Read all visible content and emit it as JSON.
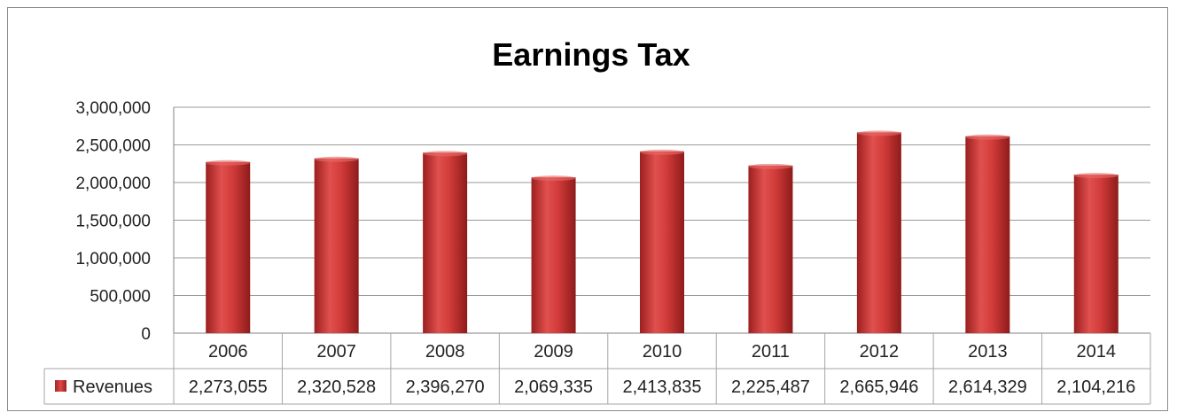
{
  "chart_data": {
    "type": "bar",
    "title": "Earnings Tax",
    "xlabel": "",
    "ylabel": "",
    "categories": [
      "2006",
      "2007",
      "2008",
      "2009",
      "2010",
      "2011",
      "2012",
      "2013",
      "2014"
    ],
    "series": [
      {
        "name": "Revenues",
        "values": [
          2273055,
          2320528,
          2396270,
          2069335,
          2413835,
          2225487,
          2665946,
          2614329,
          2104216
        ],
        "labels": [
          "2,273,055",
          "2,320,528",
          "2,396,270",
          "2,069,335",
          "2,413,835",
          "2,225,487",
          "2,665,946",
          "2,614,329",
          "2,104,216"
        ],
        "color": "#c0302f"
      }
    ],
    "ylim": [
      0,
      3000000
    ],
    "yticks": [
      0,
      500000,
      1000000,
      1500000,
      2000000,
      2500000,
      3000000
    ],
    "ytick_labels": [
      "0",
      "500,000",
      "1,000,000",
      "1,500,000",
      "2,000,000",
      "2,500,000",
      "3,000,000"
    ],
    "grid": true,
    "legend": "data-table",
    "data_table": true
  }
}
